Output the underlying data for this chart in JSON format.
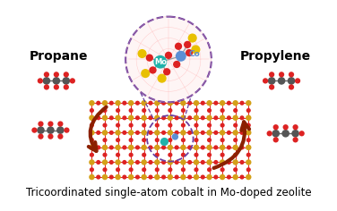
{
  "title": "Tricoordinated single-atom cobalt in Mo-doped zeolite",
  "title_fontsize": 8.5,
  "title_color": "#000000",
  "background_color": "#ffffff",
  "propane_label": "Propane",
  "propylene_label": "Propylene",
  "label_fontsize": 10,
  "label_fontweight": "bold",
  "mo_label": "Mo",
  "co_label": "Co",
  "mo_color": "#20B2AA",
  "co_color": "#5B8FD4",
  "circle_color": "#6B3FA0",
  "arrow_color": "#8B2000",
  "si_color": "#D4A017",
  "o_color": "#DD2222",
  "s_color": "#E8C000",
  "c_color": "#555555",
  "h_color": "#DD2222"
}
